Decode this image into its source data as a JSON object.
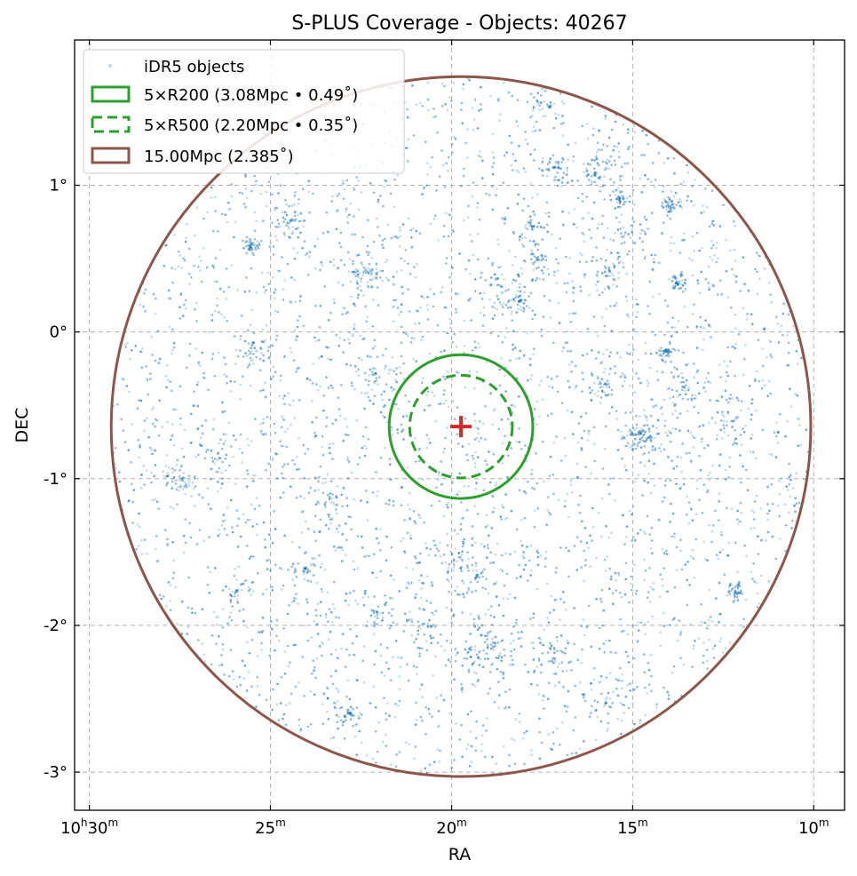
{
  "chart_data": {
    "type": "scatter",
    "title": "S-PLUS Coverage - Objects: 40267",
    "xlabel": "RA",
    "ylabel": "DEC",
    "x_unit": "RA (hours)",
    "x_reversed": true,
    "xlim": [
      10.5068,
      10.1525
    ],
    "ylim": [
      -3.26,
      1.99
    ],
    "x_ticks": [
      {
        "value": 10.5,
        "label_main": "10",
        "label_h": "h",
        "label_min": "30",
        "label_m": "m"
      },
      {
        "value": 10.4167,
        "label_main": "",
        "label_h": "",
        "label_min": "25",
        "label_m": "m"
      },
      {
        "value": 10.3333,
        "label_main": "",
        "label_h": "",
        "label_min": "20",
        "label_m": "m"
      },
      {
        "value": 10.25,
        "label_main": "",
        "label_h": "",
        "label_min": "15",
        "label_m": "m"
      },
      {
        "value": 10.1667,
        "label_main": "",
        "label_h": "",
        "label_min": "10",
        "label_m": "m"
      }
    ],
    "y_ticks": [
      {
        "value": 1,
        "label": "1°"
      },
      {
        "value": 0,
        "label": "0°"
      },
      {
        "value": -1,
        "label": "-1°"
      },
      {
        "value": -2,
        "label": "-2°"
      },
      {
        "value": -3,
        "label": "-3°"
      }
    ],
    "grid": true,
    "legend_position": "top-left",
    "center": {
      "ra_h": 10.329,
      "dec": -0.645,
      "marker": "plus",
      "color": "#d62728"
    },
    "scatter": {
      "name": "iDR5 objects",
      "count": 40267,
      "color": "#1f77b4",
      "display_points": 9000,
      "radius_deg": 2.385
    },
    "circles": [
      {
        "name": "5×R200 (3.08Mpc • 0.49˚)",
        "radius_deg": 0.49,
        "color": "#2ca02c",
        "dashed": false
      },
      {
        "name": "5×R500 (2.20Mpc • 0.35˚)",
        "radius_deg": 0.35,
        "color": "#2ca02c",
        "dashed": true
      },
      {
        "name": "15.00Mpc (2.385˚)",
        "radius_deg": 2.385,
        "color": "#8c564b",
        "dashed": false
      }
    ]
  }
}
